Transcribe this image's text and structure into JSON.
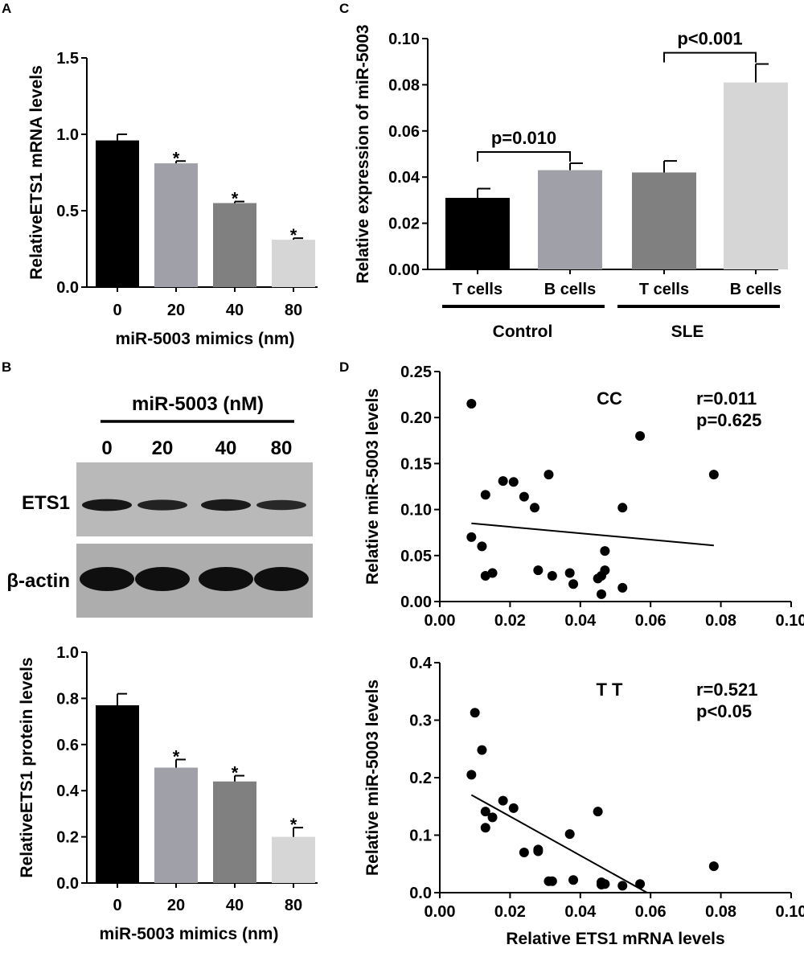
{
  "panel_letters": {
    "a": "A",
    "b": "B",
    "c": "C",
    "d": "D"
  },
  "colors": {
    "black": "#000000",
    "light_grey": "#a0a0a8",
    "dark_grey": "#808080",
    "very_light_grey": "#d6d6d6"
  },
  "blot": {
    "header": "miR-5003 (nM)",
    "lanes": [
      "0",
      "20",
      "40",
      "80"
    ],
    "rows": [
      {
        "label": "ETS1",
        "band_intensity": [
          0.85,
          0.65,
          0.8,
          0.55
        ]
      },
      {
        "label": "β-actin",
        "band_intensity": [
          1.0,
          1.0,
          1.0,
          1.0
        ]
      }
    ]
  },
  "chart_data": [
    {
      "panel": "A",
      "type": "bar",
      "title": "",
      "categories": [
        "0",
        "20",
        "40",
        "80"
      ],
      "values": [
        0.96,
        0.81,
        0.55,
        0.31
      ],
      "errors": [
        0.04,
        0.015,
        0.01,
        0.01
      ],
      "annotations": [
        "",
        "*",
        "*",
        "*"
      ],
      "bar_colors": [
        "#000000",
        "#a0a0a8",
        "#808080",
        "#d6d6d6"
      ],
      "xlabel": "miR-5003 mimics (nm)",
      "ylabel": "RelativeETS1 mRNA levels",
      "ylim": [
        0,
        1.5
      ],
      "yticks": [
        "0.0",
        "0.5",
        "1.0",
        "1.5"
      ]
    },
    {
      "panel": "B",
      "type": "bar",
      "title": "",
      "categories": [
        "0",
        "20",
        "40",
        "80"
      ],
      "values": [
        0.77,
        0.5,
        0.44,
        0.2
      ],
      "errors": [
        0.05,
        0.035,
        0.025,
        0.04
      ],
      "annotations": [
        "",
        "*",
        "*",
        "*"
      ],
      "bar_colors": [
        "#000000",
        "#a0a0a8",
        "#808080",
        "#d6d6d6"
      ],
      "xlabel": "miR-5003 mimics (nm)",
      "ylabel": "RelativeETS1 protein levels",
      "ylim": [
        0,
        1.0
      ],
      "yticks": [
        "0.0",
        "0.2",
        "0.4",
        "0.6",
        "0.8",
        "1.0"
      ]
    },
    {
      "panel": "C",
      "type": "bar",
      "title": "",
      "categories": [
        "T cells",
        "B cells",
        "T cells",
        "B cells"
      ],
      "groups": [
        "Control",
        "SLE"
      ],
      "values": [
        0.031,
        0.043,
        0.042,
        0.081
      ],
      "errors": [
        0.004,
        0.003,
        0.005,
        0.008
      ],
      "bar_colors": [
        "#000000",
        "#a0a0a8",
        "#808080",
        "#d6d6d6"
      ],
      "comparisons": [
        {
          "pair": [
            0,
            1
          ],
          "label": "p=0.010"
        },
        {
          "pair": [
            2,
            3
          ],
          "label": "p<0.001"
        }
      ],
      "xlabel": "",
      "ylabel": "Relative expression of miR-5003",
      "ylim": [
        0,
        0.1
      ],
      "yticks": [
        "0.00",
        "0.02",
        "0.04",
        "0.06",
        "0.08",
        "0.10"
      ]
    },
    {
      "panel": "D-CC",
      "type": "scatter",
      "title": "CC",
      "stats": [
        "r=0.011",
        "p=0.625"
      ],
      "x": [
        0.009,
        0.009,
        0.012,
        0.013,
        0.013,
        0.015,
        0.018,
        0.021,
        0.024,
        0.027,
        0.028,
        0.031,
        0.032,
        0.037,
        0.038,
        0.045,
        0.046,
        0.046,
        0.047,
        0.047,
        0.052,
        0.052,
        0.057,
        0.078
      ],
      "y": [
        0.215,
        0.07,
        0.06,
        0.116,
        0.028,
        0.031,
        0.131,
        0.13,
        0.114,
        0.102,
        0.034,
        0.138,
        0.028,
        0.031,
        0.019,
        0.025,
        0.028,
        0.008,
        0.034,
        0.055,
        0.015,
        0.102,
        0.18,
        0.138
      ],
      "fit_line": {
        "x": [
          0.009,
          0.078
        ],
        "y": [
          0.085,
          0.061
        ]
      },
      "xlabel": "",
      "ylabel": "Relative miR-5003 levels",
      "xlim": [
        0,
        0.1
      ],
      "ylim": [
        0,
        0.25
      ],
      "xticks": [
        "0.00",
        "0.02",
        "0.04",
        "0.06",
        "0.08",
        "0.10"
      ],
      "yticks": [
        "0.00",
        "0.05",
        "0.10",
        "0.15",
        "0.20",
        "0.25"
      ]
    },
    {
      "panel": "D-TT",
      "type": "scatter",
      "title": "T T",
      "stats": [
        "r=0.521",
        "p<0.05"
      ],
      "x": [
        0.009,
        0.01,
        0.012,
        0.013,
        0.013,
        0.015,
        0.018,
        0.021,
        0.024,
        0.028,
        0.028,
        0.031,
        0.032,
        0.037,
        0.038,
        0.045,
        0.046,
        0.046,
        0.047,
        0.052,
        0.057,
        0.078
      ],
      "y": [
        0.205,
        0.313,
        0.248,
        0.141,
        0.113,
        0.131,
        0.16,
        0.147,
        0.07,
        0.075,
        0.072,
        0.02,
        0.02,
        0.102,
        0.022,
        0.141,
        0.018,
        0.014,
        0.015,
        0.012,
        0.015,
        0.046
      ],
      "fit_line": {
        "x": [
          0.009,
          0.059
        ],
        "y": [
          0.17,
          0.0
        ]
      },
      "xlabel": "Relative ETS1 mRNA levels",
      "ylabel": "Relative miR-5003 levels",
      "xlim": [
        0,
        0.1
      ],
      "ylim": [
        0,
        0.4
      ],
      "xticks": [
        "0.00",
        "0.02",
        "0.04",
        "0.06",
        "0.08",
        "0.10"
      ],
      "yticks": [
        "0.0",
        "0.1",
        "0.2",
        "0.3",
        "0.4"
      ]
    }
  ]
}
